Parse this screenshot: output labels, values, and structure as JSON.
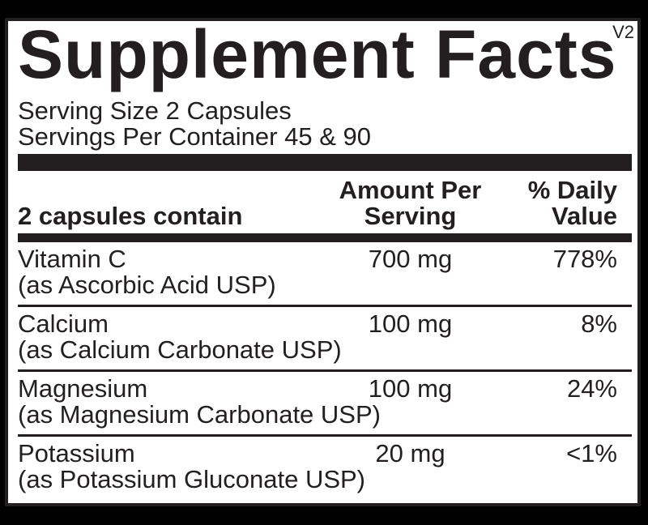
{
  "version": "V2",
  "title": "Supplement Facts",
  "serving": {
    "size": "Serving Size 2 Capsules",
    "per_container": "Servings Per Container 45 & 90"
  },
  "table": {
    "headers": {
      "col1": "2 capsules contain",
      "col2": "Amount Per Serving",
      "col3": "% Daily Value"
    },
    "rows": [
      {
        "name": "Vitamin C",
        "source": "(as Ascorbic Acid USP)",
        "amount": "700 mg",
        "daily_value": "778%"
      },
      {
        "name": "Calcium",
        "source": "(as Calcium Carbonate USP)",
        "amount": "100 mg",
        "daily_value": "8%"
      },
      {
        "name": "Magnesium",
        "source": "(as Magnesium Carbonate USP)",
        "amount": "100 mg",
        "daily_value": "24%"
      },
      {
        "name": "Potassium",
        "source": "(as Potassium Gluconate USP)",
        "amount": "20 mg",
        "daily_value": "<1%"
      }
    ]
  },
  "colors": {
    "ink": "#231f20",
    "panel_background": "#ffffff",
    "page_background": "#000000"
  }
}
